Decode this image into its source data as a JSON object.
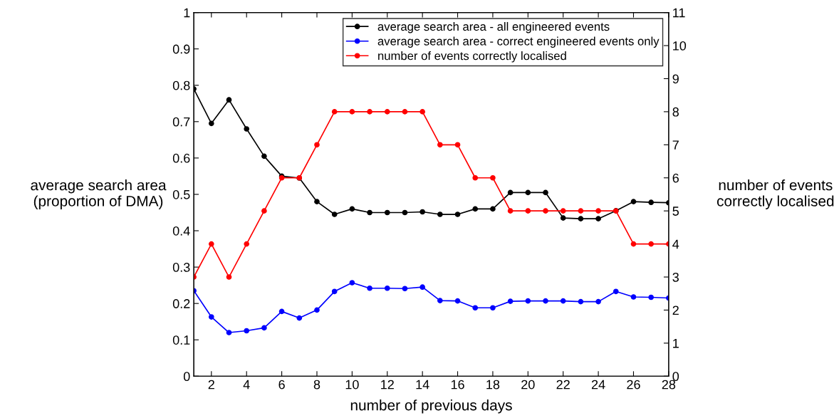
{
  "chart_data": {
    "type": "line",
    "xlabel": "number of previous days",
    "ylabel": "average search area\n(proportion of DMA)",
    "y2label": "number of events\ncorrectly localised",
    "x": [
      1,
      2,
      3,
      4,
      5,
      6,
      7,
      8,
      9,
      10,
      11,
      12,
      13,
      14,
      15,
      16,
      17,
      18,
      19,
      20,
      21,
      22,
      23,
      24,
      25,
      26,
      27,
      28
    ],
    "series": [
      {
        "name": "average search area - all engineered events",
        "color": "#000000",
        "values": [
          0.79,
          0.695,
          0.76,
          0.68,
          0.605,
          0.55,
          0.545,
          0.48,
          0.445,
          0.46,
          0.45,
          0.45,
          0.45,
          0.452,
          0.445,
          0.445,
          0.46,
          0.46,
          0.505,
          0.505,
          0.505,
          0.435,
          0.433,
          0.433,
          0.455,
          0.48,
          0.478,
          0.477
        ]
      },
      {
        "name": "average search area - correct engineered events only",
        "color": "#0000ff",
        "values": [
          0.235,
          0.163,
          0.12,
          0.125,
          0.133,
          0.178,
          0.16,
          0.182,
          0.233,
          0.257,
          0.242,
          0.242,
          0.241,
          0.245,
          0.208,
          0.207,
          0.188,
          0.188,
          0.206,
          0.207,
          0.207,
          0.207,
          0.205,
          0.205,
          0.233,
          0.218,
          0.217,
          0.215
        ]
      },
      {
        "name": "number of events correctly localised",
        "color": "#ff0000",
        "axis": "y2",
        "values": [
          3,
          4,
          3,
          4,
          5,
          6,
          6,
          7,
          8,
          8,
          8,
          8,
          8,
          8,
          7,
          7,
          6,
          6,
          5,
          5,
          5,
          5,
          5,
          5,
          5,
          4,
          4,
          4
        ]
      }
    ],
    "xlim": [
      1,
      28
    ],
    "xticks": [
      2,
      4,
      6,
      8,
      10,
      12,
      14,
      16,
      18,
      20,
      22,
      24,
      26,
      28
    ],
    "ylim": [
      0,
      1
    ],
    "yticks": [
      0,
      0.1,
      0.2,
      0.3,
      0.4,
      0.5,
      0.6,
      0.7,
      0.8,
      0.9,
      1
    ],
    "y2lim": [
      0,
      11
    ],
    "y2ticks": [
      0,
      1,
      2,
      3,
      4,
      5,
      6,
      7,
      8,
      9,
      10,
      11
    ],
    "grid": false,
    "legend": "top right",
    "marker": "circle",
    "line_style": "solid"
  }
}
